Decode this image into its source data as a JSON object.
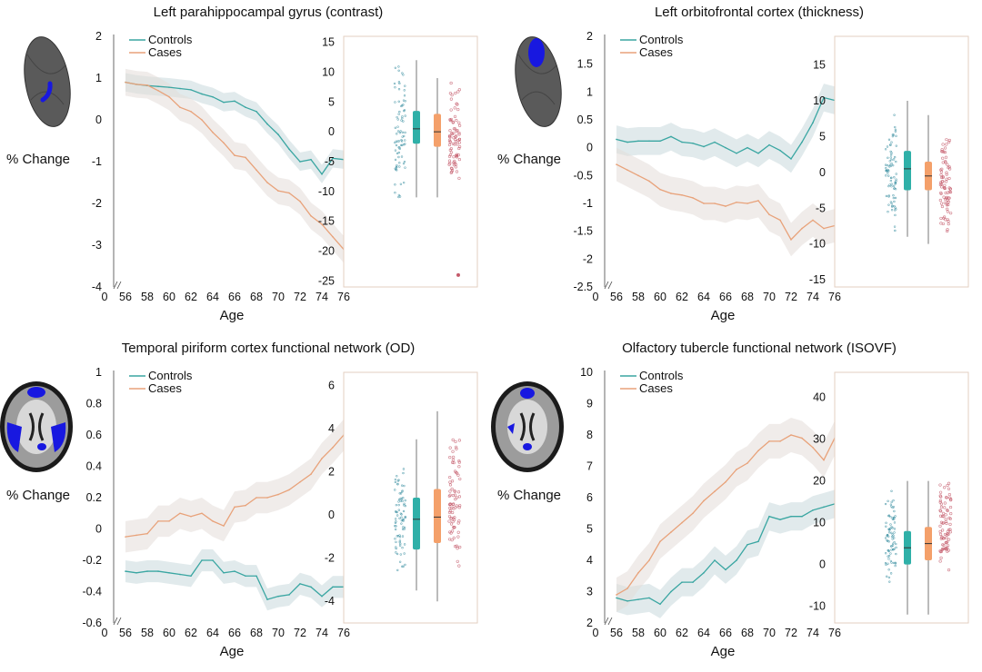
{
  "colors": {
    "controls": "#3aa6a2",
    "cases": "#e8a27a",
    "controls_fill": "#c9d8dc",
    "cases_fill": "#e3dcd8",
    "box_controls": "#2fb0a8",
    "box_cases": "#f4a06a",
    "brain_grey": "#5a5a5a",
    "brain_blue": "#1818e0"
  },
  "common": {
    "ylabel": "% Change",
    "xlabel": "Age",
    "legend": [
      "Controls",
      "Cases"
    ],
    "x_ticks": [
      56,
      58,
      60,
      62,
      64,
      66,
      68,
      70,
      72,
      74,
      76
    ],
    "x_zero": "0"
  },
  "chart_data": [
    {
      "type": "line",
      "title": "Left parahippocampal gyrus (contrast)",
      "icon": "left-parahippocampal-brain-icon",
      "ylim": [
        -4,
        2
      ],
      "y_ticks": [
        2,
        1,
        0,
        -1,
        -2,
        -3,
        -4
      ],
      "x": [
        56,
        57,
        58,
        59,
        60,
        61,
        62,
        63,
        64,
        65,
        66,
        67,
        68,
        69,
        70,
        71,
        72,
        73,
        74,
        75,
        76
      ],
      "series": [
        {
          "name": "Controls",
          "values": [
            0.9,
            0.85,
            0.82,
            0.8,
            0.78,
            0.75,
            0.72,
            0.62,
            0.55,
            0.42,
            0.45,
            0.3,
            0.2,
            -0.1,
            -0.35,
            -0.7,
            -1.0,
            -0.95,
            -1.3,
            -0.92,
            -0.95
          ],
          "band": 0.22
        },
        {
          "name": "Cases",
          "values": [
            0.9,
            0.85,
            0.83,
            0.7,
            0.55,
            0.3,
            0.2,
            0.0,
            -0.3,
            -0.55,
            -0.85,
            -0.9,
            -1.2,
            -1.5,
            -1.7,
            -1.75,
            -1.95,
            -2.3,
            -2.5,
            -2.8,
            -3.1
          ],
          "band": 0.32
        }
      ],
      "box": {
        "y_ticks": [
          15,
          10,
          5,
          0,
          -5,
          -10,
          -15,
          -20,
          -25
        ],
        "ylim": [
          -26,
          16
        ],
        "controls": {
          "q1": -2,
          "median": 0.5,
          "q3": 3.5,
          "low": -11,
          "high": 12,
          "scatter_low": -12,
          "scatter_high": 14
        },
        "cases": {
          "q1": -2.5,
          "median": 0,
          "q3": 3,
          "low": -11,
          "high": 9,
          "scatter_low": -11,
          "scatter_high": 9,
          "outlier": -24
        }
      }
    },
    {
      "type": "line",
      "title": "Left orbitofrontal cortex (thickness)",
      "icon": "left-orbitofrontal-brain-icon",
      "ylim": [
        -2.5,
        2
      ],
      "y_ticks": [
        2,
        1.5,
        1,
        0.5,
        0,
        -0.5,
        -1,
        -1.5,
        -2,
        -2.5
      ],
      "x": [
        56,
        57,
        58,
        59,
        60,
        61,
        62,
        63,
        64,
        65,
        66,
        67,
        68,
        69,
        70,
        71,
        72,
        73,
        74,
        75,
        76
      ],
      "series": [
        {
          "name": "Controls",
          "values": [
            0.15,
            0.1,
            0.12,
            0.12,
            0.12,
            0.2,
            0.1,
            0.08,
            0.02,
            0.1,
            0.0,
            -0.1,
            0.0,
            -0.1,
            0.05,
            -0.05,
            -0.2,
            0.1,
            0.45,
            0.9,
            0.85
          ],
          "band": 0.25
        },
        {
          "name": "Cases",
          "values": [
            -0.3,
            -0.4,
            -0.5,
            -0.6,
            -0.75,
            -0.82,
            -0.85,
            -0.9,
            -1.0,
            -1.0,
            -1.05,
            -0.98,
            -1.0,
            -0.95,
            -1.2,
            -1.3,
            -1.65,
            -1.45,
            -1.3,
            -1.45,
            -1.4
          ],
          "band": 0.3
        }
      ],
      "box": {
        "y_ticks": [
          15,
          10,
          5,
          0,
          -5,
          -10,
          -15
        ],
        "ylim": [
          -16,
          19
        ],
        "controls": {
          "q1": -2.5,
          "median": 0.5,
          "q3": 3,
          "low": -9,
          "high": 10,
          "scatter_low": -9,
          "scatter_high": 9
        },
        "cases": {
          "q1": -2.5,
          "median": -0.5,
          "q3": 1.5,
          "low": -10,
          "high": 8,
          "scatter_low": -9,
          "scatter_high": 6
        }
      }
    },
    {
      "type": "line",
      "title": "Temporal piriform cortex functional network (OD)",
      "icon": "temporal-piriform-network-brain-icon",
      "ylim": [
        -0.6,
        1
      ],
      "y_ticks": [
        1,
        0.8,
        0.6,
        0.4,
        0.2,
        0,
        -0.2,
        -0.4,
        -0.6
      ],
      "x": [
        56,
        57,
        58,
        59,
        60,
        61,
        62,
        63,
        64,
        65,
        66,
        67,
        68,
        69,
        70,
        71,
        72,
        73,
        74,
        75,
        76
      ],
      "series": [
        {
          "name": "Controls",
          "values": [
            -0.27,
            -0.28,
            -0.27,
            -0.27,
            -0.28,
            -0.29,
            -0.3,
            -0.2,
            -0.2,
            -0.28,
            -0.27,
            -0.3,
            -0.3,
            -0.45,
            -0.43,
            -0.42,
            -0.35,
            -0.37,
            -0.43,
            -0.37,
            -0.37
          ],
          "band": 0.07
        },
        {
          "name": "Cases",
          "values": [
            -0.05,
            -0.04,
            -0.03,
            0.05,
            0.05,
            0.1,
            0.08,
            0.1,
            0.05,
            0.02,
            0.14,
            0.15,
            0.2,
            0.2,
            0.22,
            0.25,
            0.3,
            0.35,
            0.45,
            0.52,
            0.6
          ],
          "band": 0.1
        }
      ],
      "box": {
        "y_ticks": [
          6,
          4,
          2,
          0,
          -2,
          -4
        ],
        "ylim": [
          -5,
          6.6
        ],
        "controls": {
          "q1": -1.6,
          "median": -0.2,
          "q3": 0.8,
          "low": -3.5,
          "high": 3.5,
          "scatter_low": -3,
          "scatter_high": 2.8
        },
        "cases": {
          "q1": -1.3,
          "median": -0.1,
          "q3": 1.2,
          "low": -4,
          "high": 4.8,
          "scatter_low": -2.5,
          "scatter_high": 4
        }
      }
    },
    {
      "type": "line",
      "title": "Olfactory tubercle functional network (ISOVF)",
      "icon": "olfactory-tubercle-network-brain-icon",
      "ylim": [
        2,
        10
      ],
      "y_ticks": [
        10,
        9,
        8,
        7,
        6,
        5,
        4,
        3,
        2
      ],
      "x": [
        56,
        57,
        58,
        59,
        60,
        61,
        62,
        63,
        64,
        65,
        66,
        67,
        68,
        69,
        70,
        71,
        72,
        73,
        74,
        75,
        76
      ],
      "series": [
        {
          "name": "Controls",
          "values": [
            2.8,
            2.7,
            2.75,
            2.8,
            2.6,
            3.0,
            3.3,
            3.3,
            3.6,
            4.0,
            3.7,
            4.0,
            4.5,
            4.6,
            5.4,
            5.3,
            5.4,
            5.4,
            5.6,
            5.7,
            5.8
          ],
          "band": 0.45
        },
        {
          "name": "Cases",
          "values": [
            2.9,
            3.1,
            3.6,
            4.0,
            4.6,
            4.9,
            5.2,
            5.5,
            5.9,
            6.2,
            6.5,
            6.9,
            7.1,
            7.5,
            7.8,
            7.8,
            8.0,
            7.9,
            7.6,
            7.2,
            7.9
          ],
          "band": 0.55
        }
      ],
      "box": {
        "y_ticks": [
          40,
          30,
          20,
          10,
          0,
          -10
        ],
        "ylim": [
          -14,
          46
        ],
        "controls": {
          "q1": 0,
          "median": 4,
          "q3": 8,
          "low": -12,
          "high": 20,
          "scatter_low": -6,
          "scatter_high": 18
        },
        "cases": {
          "q1": 1,
          "median": 5,
          "q3": 9,
          "low": -12,
          "high": 20,
          "scatter_low": -4,
          "scatter_high": 22
        }
      }
    }
  ]
}
